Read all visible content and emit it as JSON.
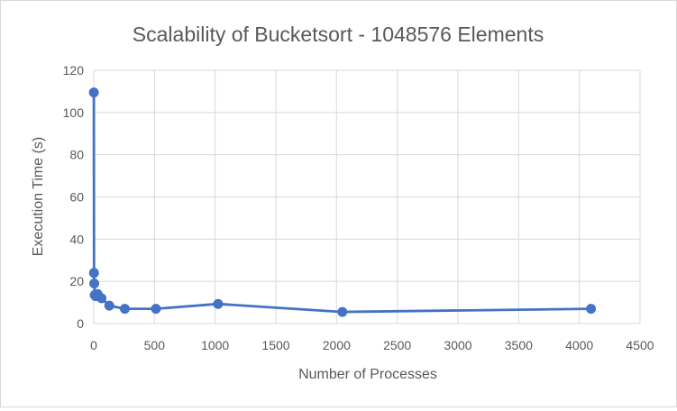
{
  "chart_data": {
    "type": "scatter",
    "title": "Scalability of Bucketsort - 1048576 Elements",
    "xlabel": "Number of Processes",
    "ylabel": "Execution Time (s)",
    "xlim": [
      0,
      4500
    ],
    "ylim": [
      0,
      120
    ],
    "x_ticks": [
      "0",
      "500",
      "1000",
      "1500",
      "2000",
      "2500",
      "3000",
      "3500",
      "4000",
      "4500"
    ],
    "y_ticks": [
      "0",
      "20",
      "40",
      "60",
      "80",
      "100",
      "120"
    ],
    "grid": true,
    "legend": "none",
    "lines": true,
    "colors": {
      "series": "#4472c4",
      "grid": "#d9d9d9",
      "text": "#595959"
    },
    "series": [
      {
        "points": [
          {
            "x": 1,
            "y": 109.5
          },
          {
            "x": 2,
            "y": 24.0
          },
          {
            "x": 4,
            "y": 19.0
          },
          {
            "x": 8,
            "y": 13.5
          },
          {
            "x": 16,
            "y": 13.0
          },
          {
            "x": 32,
            "y": 14.0
          },
          {
            "x": 64,
            "y": 12.0
          },
          {
            "x": 128,
            "y": 8.5
          },
          {
            "x": 256,
            "y": 7.0
          },
          {
            "x": 512,
            "y": 7.0
          },
          {
            "x": 1024,
            "y": 9.3
          },
          {
            "x": 2048,
            "y": 5.5
          },
          {
            "x": 4096,
            "y": 7.0
          }
        ]
      }
    ]
  }
}
